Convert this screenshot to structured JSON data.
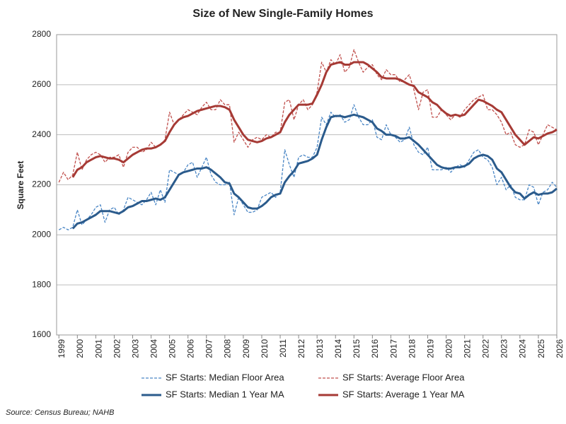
{
  "chart_data": {
    "type": "line",
    "title": "Size of New Single-Family Homes",
    "y_label": "Square Feet",
    "source": "Source: Census Bureau; NAHB",
    "x": [
      1999,
      1999.25,
      1999.5,
      1999.75,
      2000,
      2000.25,
      2000.5,
      2000.75,
      2001,
      2001.25,
      2001.5,
      2001.75,
      2002,
      2002.25,
      2002.5,
      2002.75,
      2003,
      2003.25,
      2003.5,
      2003.75,
      2004,
      2004.25,
      2004.5,
      2004.75,
      2005,
      2005.25,
      2005.5,
      2005.75,
      2006,
      2006.25,
      2006.5,
      2006.75,
      2007,
      2007.25,
      2007.5,
      2007.75,
      2008,
      2008.25,
      2008.5,
      2008.75,
      2009,
      2009.25,
      2009.5,
      2009.75,
      2010,
      2010.25,
      2010.5,
      2010.75,
      2011,
      2011.25,
      2011.5,
      2011.75,
      2012,
      2012.25,
      2012.5,
      2012.75,
      2013,
      2013.25,
      2013.5,
      2013.75,
      2014,
      2014.25,
      2014.5,
      2014.75,
      2015,
      2015.25,
      2015.5,
      2015.75,
      2016,
      2016.25,
      2016.5,
      2016.75,
      2017,
      2017.25,
      2017.5,
      2017.75,
      2018,
      2018.25,
      2018.5,
      2018.75,
      2019,
      2019.25,
      2019.5,
      2019.75,
      2020,
      2020.25,
      2020.5,
      2020.75,
      2021,
      2021.25,
      2021.5,
      2021.75,
      2022,
      2022.25,
      2022.5,
      2022.75,
      2023,
      2023.25,
      2023.5,
      2023.75,
      2024,
      2024.25,
      2024.5,
      2024.75,
      2025,
      2025.25,
      2025.5,
      2025.75,
      2026
    ],
    "xlim": [
      1998.875,
      2026
    ],
    "xticks": [
      1999,
      2000,
      2001,
      2002,
      2003,
      2004,
      2005,
      2006,
      2007,
      2008,
      2009,
      2010,
      2011,
      2012,
      2013,
      2014,
      2015,
      2016,
      2017,
      2018,
      2019,
      2020,
      2021,
      2022,
      2023,
      2024,
      2025,
      2026
    ],
    "ylim": [
      1600,
      2800
    ],
    "yticks": [
      1600,
      1800,
      2000,
      2200,
      2400,
      2600,
      2800
    ],
    "grid": true,
    "legend": "bottom",
    "series": [
      {
        "name": "SF Starts: Median Floor Area",
        "color": "#4a86c5",
        "dashed": true,
        "width": 1.3,
        "values": [
          2020,
          2030,
          2020,
          2030,
          2100,
          2040,
          2060,
          2080,
          2110,
          2120,
          2050,
          2100,
          2110,
          2080,
          2100,
          2150,
          2140,
          2130,
          2120,
          2140,
          2170,
          2120,
          2180,
          2130,
          2260,
          2250,
          2240,
          2250,
          2280,
          2290,
          2230,
          2270,
          2310,
          2240,
          2210,
          2200,
          2200,
          2210,
          2080,
          2150,
          2120,
          2090,
          2090,
          2100,
          2150,
          2160,
          2170,
          2150,
          2170,
          2340,
          2280,
          2230,
          2310,
          2320,
          2310,
          2310,
          2350,
          2470,
          2440,
          2490,
          2470,
          2480,
          2450,
          2460,
          2520,
          2470,
          2440,
          2440,
          2460,
          2390,
          2380,
          2440,
          2400,
          2390,
          2370,
          2380,
          2430,
          2360,
          2330,
          2320,
          2350,
          2260,
          2260,
          2260,
          2270,
          2250,
          2270,
          2280,
          2270,
          2300,
          2330,
          2340,
          2310,
          2300,
          2270,
          2200,
          2230,
          2180,
          2200,
          2150,
          2140,
          2140,
          2200,
          2190,
          2120,
          2170,
          2180,
          2210,
          2190
        ]
      },
      {
        "name": "SF Starts: Average Floor Area",
        "color": "#c0504d",
        "dashed": true,
        "width": 1.3,
        "values": [
          2210,
          2250,
          2220,
          2240,
          2330,
          2260,
          2300,
          2320,
          2330,
          2320,
          2290,
          2310,
          2310,
          2320,
          2270,
          2330,
          2350,
          2350,
          2330,
          2340,
          2370,
          2350,
          2360,
          2380,
          2490,
          2440,
          2460,
          2480,
          2500,
          2490,
          2480,
          2510,
          2530,
          2500,
          2500,
          2540,
          2520,
          2520,
          2370,
          2410,
          2380,
          2350,
          2380,
          2390,
          2380,
          2400,
          2390,
          2410,
          2410,
          2530,
          2540,
          2460,
          2520,
          2540,
          2500,
          2520,
          2570,
          2690,
          2650,
          2700,
          2680,
          2720,
          2650,
          2670,
          2740,
          2690,
          2650,
          2670,
          2680,
          2640,
          2620,
          2660,
          2640,
          2640,
          2610,
          2620,
          2640,
          2580,
          2500,
          2570,
          2580,
          2470,
          2470,
          2500,
          2480,
          2460,
          2480,
          2470,
          2500,
          2520,
          2540,
          2550,
          2560,
          2500,
          2500,
          2480,
          2450,
          2400,
          2410,
          2360,
          2350,
          2360,
          2420,
          2410,
          2360,
          2400,
          2440,
          2430,
          2420
        ]
      },
      {
        "name": "SF Starts: Median 1 Year MA",
        "color": "#2b5b8c",
        "dashed": false,
        "width": 3,
        "values": [
          null,
          null,
          null,
          2025,
          2045,
          2050,
          2060,
          2070,
          2080,
          2095,
          2095,
          2095,
          2090,
          2085,
          2095,
          2110,
          2115,
          2125,
          2135,
          2135,
          2140,
          2145,
          2140,
          2150,
          2180,
          2210,
          2240,
          2250,
          2255,
          2260,
          2265,
          2265,
          2270,
          2260,
          2245,
          2230,
          2210,
          2205,
          2165,
          2150,
          2130,
          2110,
          2105,
          2105,
          2115,
          2130,
          2150,
          2160,
          2165,
          2210,
          2235,
          2255,
          2285,
          2290,
          2295,
          2305,
          2320,
          2380,
          2430,
          2470,
          2475,
          2475,
          2470,
          2475,
          2480,
          2475,
          2470,
          2460,
          2450,
          2425,
          2415,
          2400,
          2400,
          2395,
          2385,
          2385,
          2390,
          2375,
          2360,
          2340,
          2320,
          2300,
          2280,
          2270,
          2265,
          2265,
          2270,
          2270,
          2275,
          2285,
          2305,
          2315,
          2320,
          2315,
          2300,
          2265,
          2250,
          2220,
          2190,
          2170,
          2165,
          2145,
          2160,
          2170,
          2160,
          2165,
          2165,
          2170,
          2185
        ]
      },
      {
        "name": "SF Starts: Average 1 Year MA",
        "color": "#a63a35",
        "dashed": false,
        "width": 3,
        "values": [
          null,
          null,
          null,
          2230,
          2260,
          2270,
          2290,
          2300,
          2310,
          2315,
          2310,
          2305,
          2305,
          2300,
          2290,
          2305,
          2320,
          2330,
          2340,
          2345,
          2345,
          2350,
          2360,
          2375,
          2410,
          2440,
          2460,
          2470,
          2475,
          2485,
          2495,
          2500,
          2505,
          2510,
          2515,
          2515,
          2510,
          2500,
          2460,
          2430,
          2400,
          2380,
          2375,
          2370,
          2375,
          2385,
          2390,
          2400,
          2410,
          2450,
          2480,
          2500,
          2520,
          2520,
          2520,
          2525,
          2560,
          2600,
          2650,
          2680,
          2685,
          2690,
          2680,
          2680,
          2690,
          2690,
          2690,
          2680,
          2665,
          2650,
          2630,
          2625,
          2625,
          2625,
          2620,
          2610,
          2600,
          2595,
          2570,
          2560,
          2550,
          2530,
          2520,
          2500,
          2485,
          2475,
          2480,
          2475,
          2480,
          2500,
          2520,
          2540,
          2535,
          2525,
          2515,
          2500,
          2490,
          2460,
          2430,
          2400,
          2380,
          2360,
          2375,
          2390,
          2385,
          2395,
          2405,
          2410,
          2420
        ]
      }
    ]
  }
}
